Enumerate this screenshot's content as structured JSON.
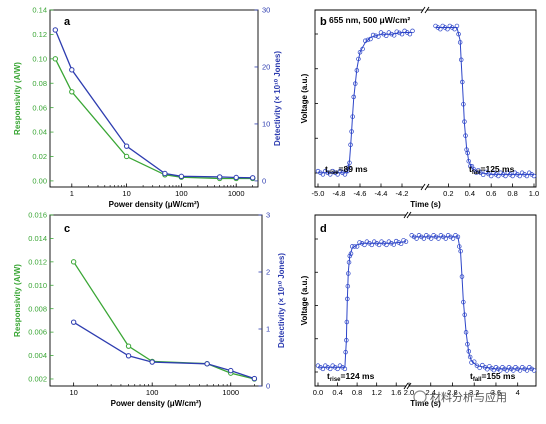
{
  "colors": {
    "green": "#3aa635",
    "blue": "#2e3db0",
    "sample": "#2d45c8",
    "black": "#000000"
  },
  "panel_labels": [
    "a",
    "b",
    "c",
    "d"
  ],
  "chart_data": [
    {
      "id": "a",
      "type": "line",
      "xscale": "log",
      "xlabel": "Power density (μW/cm²)",
      "x_ticks": [
        "1",
        "10",
        "100",
        "1000"
      ],
      "x_tick_values": [
        1,
        10,
        100,
        1000
      ],
      "xlim": [
        0.4,
        2500
      ],
      "ylabel_left": "Responsivity (A/W)",
      "ylabel_right": "Detectivity (× 10¹⁰ Jones)",
      "ylim_left": [
        -0.005,
        0.14
      ],
      "ylim_right": [
        -1.07,
        30
      ],
      "y_ticks_left": [
        "0.00",
        "0.02",
        "0.04",
        "0.06",
        "0.08",
        "0.10",
        "0.12",
        "0.14"
      ],
      "y_tick_values_left": [
        0,
        0.02,
        0.04,
        0.06,
        0.08,
        0.1,
        0.12,
        0.14
      ],
      "y_ticks_right": [
        "0",
        "10",
        "20",
        "30"
      ],
      "y_tick_values_right": [
        0,
        10,
        20,
        30
      ],
      "x": [
        0.5,
        1,
        10,
        50,
        100,
        500,
        1000,
        2000
      ],
      "series": [
        {
          "axis": "left",
          "color": "green",
          "values": [
            0.1,
            0.073,
            0.02,
            0.005,
            0.003,
            0.002,
            0.002,
            0.002
          ]
        },
        {
          "axis": "right",
          "color": "blue",
          "values": [
            26.5,
            19.5,
            6.1,
            1.3,
            0.8,
            0.7,
            0.6,
            0.55
          ]
        }
      ]
    },
    {
      "id": "b",
      "type": "line",
      "title": "655 nm, 500 μW/cm²",
      "xlabel": "Time (s)",
      "ylabel": "Voltage (a.u.)",
      "x_ticks": [
        "-5.0",
        "-4.8",
        "-4.6",
        "-4.4",
        "-4.2",
        "0.2",
        "0.4",
        "0.6",
        "0.8",
        "1.0"
      ],
      "segments": [
        {
          "xlim": [
            -5.0,
            -4.0
          ],
          "x_tick_values": [
            -5.0,
            -4.8,
            -4.6,
            -4.4,
            -4.2
          ],
          "x": [
            -5.0,
            -4.72,
            -4.7,
            -4.68,
            -4.66,
            -4.63,
            -4.6,
            -4.55,
            -4.5,
            -4.45,
            -4.4,
            -4.3,
            -4.2,
            -4.1
          ],
          "y": [
            0.05,
            0.05,
            0.12,
            0.3,
            0.5,
            0.68,
            0.78,
            0.84,
            0.87,
            0.88,
            0.89,
            0.89,
            0.9,
            0.9
          ]
        },
        {
          "xlim": [
            0.0,
            1.0
          ],
          "x_tick_values": [
            0.2,
            0.4,
            0.6,
            0.8,
            1.0
          ],
          "x": [
            0.08,
            0.28,
            0.31,
            0.33,
            0.35,
            0.37,
            0.39,
            0.42,
            0.46,
            0.5,
            0.6,
            0.8,
            1.0
          ],
          "y": [
            0.93,
            0.93,
            0.85,
            0.6,
            0.35,
            0.2,
            0.12,
            0.08,
            0.06,
            0.05,
            0.04,
            0.04,
            0.04
          ]
        }
      ],
      "annotations": [
        {
          "text_main": "t",
          "text_sub": "rise",
          "text_tail": "=89 ms"
        },
        {
          "text_main": "t",
          "text_sub": "fall",
          "text_tail": "=125 ms"
        }
      ]
    },
    {
      "id": "c",
      "type": "line",
      "xscale": "log",
      "xlabel": "Power density (μW/cm²)",
      "x_ticks": [
        "10",
        "100",
        "1000"
      ],
      "x_tick_values": [
        10,
        100,
        1000
      ],
      "xlim": [
        5,
        2500
      ],
      "ylabel_left": "Responsivity (A/W)",
      "ylabel_right": "Detectivity (× 10¹⁰ Jones)",
      "ylim_left": [
        0.0014,
        0.016
      ],
      "ylim_right": [
        0,
        3
      ],
      "y_ticks_left": [
        "0.002",
        "0.004",
        "0.006",
        "0.008",
        "0.010",
        "0.012",
        "0.014",
        "0.016"
      ],
      "y_tick_values_left": [
        0.002,
        0.004,
        0.006,
        0.008,
        0.01,
        0.012,
        0.014,
        0.016
      ],
      "y_ticks_right": [
        "0",
        "1",
        "2",
        "3"
      ],
      "y_tick_values_right": [
        0,
        1,
        2,
        3
      ],
      "x": [
        10,
        50,
        100,
        500,
        1000,
        2000
      ],
      "series": [
        {
          "axis": "left",
          "color": "green",
          "values": [
            0.012,
            0.0048,
            0.0035,
            0.0033,
            0.0025,
            0.002
          ]
        },
        {
          "axis": "right",
          "color": "blue",
          "values": [
            1.12,
            0.53,
            0.42,
            0.39,
            0.27,
            0.13
          ]
        }
      ]
    },
    {
      "id": "d",
      "type": "line",
      "xlabel": "Time (s)",
      "ylabel": "Voltage (a.u.)",
      "x_ticks": [
        "0.0",
        "0.4",
        "0.8",
        "1.2",
        "1.6",
        "2.0",
        "2.4",
        "2.8",
        "3.2",
        "3.6",
        "4"
      ],
      "segments": [
        {
          "xlim": [
            0.0,
            1.8
          ],
          "x_tick_values": [
            0.0,
            0.4,
            0.8,
            1.2,
            1.6
          ],
          "x": [
            0.0,
            0.55,
            0.58,
            0.6,
            0.62,
            0.65,
            0.7,
            0.8,
            0.9,
            1.0,
            1.2,
            1.5,
            1.8
          ],
          "y": [
            0.08,
            0.08,
            0.25,
            0.5,
            0.68,
            0.78,
            0.83,
            0.85,
            0.86,
            0.86,
            0.86,
            0.86,
            0.87
          ]
        },
        {
          "xlim": [
            2.0,
            4.3
          ],
          "x_tick_values": [
            2.0,
            2.4,
            2.8,
            3.2,
            3.6,
            4
          ],
          "x": [
            2.05,
            2.9,
            2.95,
            3.0,
            3.05,
            3.1,
            3.15,
            3.25,
            3.4,
            3.6,
            3.8,
            4.0,
            4.3
          ],
          "y": [
            0.9,
            0.9,
            0.8,
            0.5,
            0.3,
            0.17,
            0.12,
            0.09,
            0.08,
            0.07,
            0.07,
            0.07,
            0.07
          ]
        }
      ],
      "annotations": [
        {
          "text_main": "t",
          "text_sub": "rise",
          "text_tail": "=124 ms"
        },
        {
          "text_main": "t",
          "text_sub": "fall",
          "text_tail": "=155 ms"
        }
      ]
    }
  ],
  "watermark": "材料分析与应用"
}
